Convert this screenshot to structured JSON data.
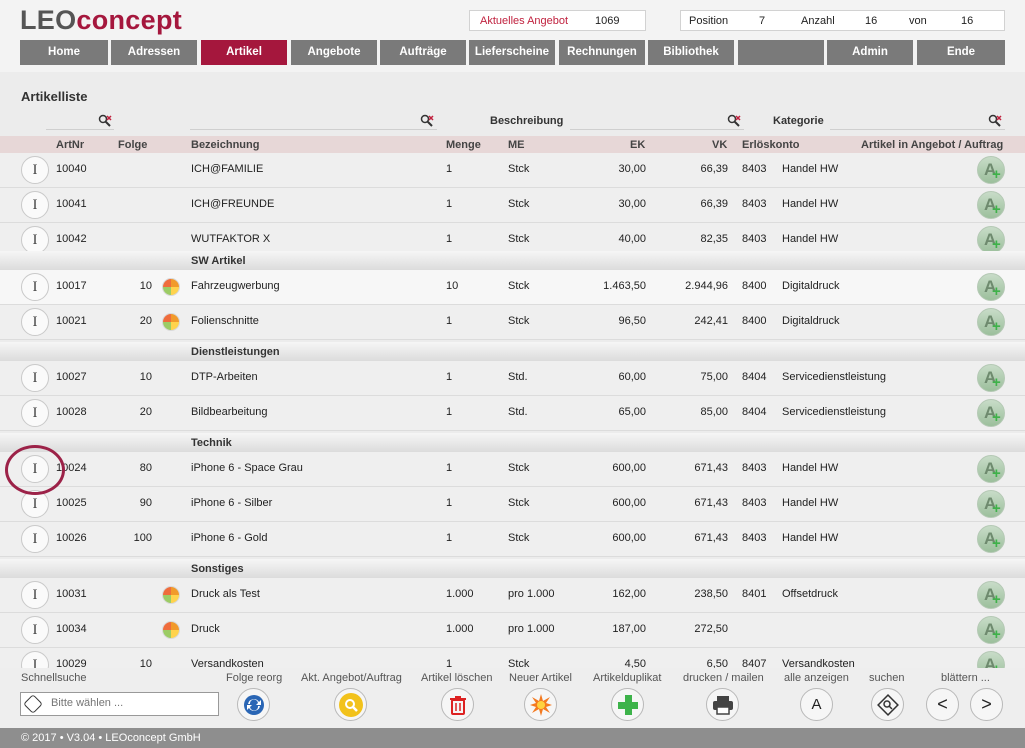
{
  "app": {
    "logo_part1": "LEO",
    "logo_part2": "concept",
    "offer_label": "Aktuelles Angebot",
    "offer_value": "1069",
    "position_label": "Position",
    "position_value": "7",
    "count_label": "Anzahl",
    "count_value": "16",
    "of_label": "von",
    "of_value": "16"
  },
  "nav": [
    "Home",
    "Adressen",
    "Artikel",
    "Angebote",
    "Aufträge",
    "Lieferscheine",
    "Rechnungen",
    "Bibliothek",
    "",
    "Admin",
    "Ende"
  ],
  "page_title": "Artikelliste",
  "filters": {
    "beschreibung_label": "Beschreibung",
    "kategorie_label": "Kategorie"
  },
  "columns": {
    "artnr": "ArtNr",
    "folge": "Folge",
    "bezeichnung": "Bezeichnung",
    "menge": "Menge",
    "me": "ME",
    "ek": "EK",
    "vk": "VK",
    "erloeskonto": "Erlöskonto",
    "artikel_in": "Artikel in Angebot / Auftrag"
  },
  "rows": [
    {
      "artnr": "10040",
      "folge": "",
      "pie": false,
      "bez": "ICH@FAMILIE",
      "menge": "1",
      "me": "Stck",
      "ek": "30,00",
      "vk": "66,39",
      "konto": "8403",
      "kat": "Handel HW"
    },
    {
      "artnr": "10041",
      "folge": "",
      "pie": false,
      "bez": "ICH@FREUNDE",
      "menge": "1",
      "me": "Stck",
      "ek": "30,00",
      "vk": "66,39",
      "konto": "8403",
      "kat": "Handel HW"
    },
    {
      "artnr": "10042",
      "folge": "",
      "pie": false,
      "bez": "WUTFAKTOR X",
      "menge": "1",
      "me": "Stck",
      "ek": "40,00",
      "vk": "82,35",
      "konto": "8403",
      "kat": "Handel HW"
    },
    {
      "artnr": "10017",
      "folge": "10",
      "pie": true,
      "bez": "Fahrzeugwerbung",
      "menge": "10",
      "me": "Stck",
      "ek": "1.463,50",
      "vk": "2.944,96",
      "konto": "8400",
      "kat": "Digitaldruck"
    },
    {
      "artnr": "10021",
      "folge": "20",
      "pie": true,
      "bez": "Folienschnitte",
      "menge": "1",
      "me": "Stck",
      "ek": "96,50",
      "vk": "242,41",
      "konto": "8400",
      "kat": "Digitaldruck"
    },
    {
      "artnr": "10027",
      "folge": "10",
      "pie": false,
      "bez": "DTP-Arbeiten",
      "menge": "1",
      "me": "Std.",
      "ek": "60,00",
      "vk": "75,00",
      "konto": "8404",
      "kat": "Servicedienstleistung"
    },
    {
      "artnr": "10028",
      "folge": "20",
      "pie": false,
      "bez": "Bildbearbeitung",
      "menge": "1",
      "me": "Std.",
      "ek": "65,00",
      "vk": "85,00",
      "konto": "8404",
      "kat": "Servicedienstleistung"
    },
    {
      "artnr": "10024",
      "folge": "80",
      "pie": false,
      "bez": "iPhone 6 - Space Grau",
      "menge": "1",
      "me": "Stck",
      "ek": "600,00",
      "vk": "671,43",
      "konto": "8403",
      "kat": "Handel HW"
    },
    {
      "artnr": "10025",
      "folge": "90",
      "pie": false,
      "bez": "iPhone 6 - Silber",
      "menge": "1",
      "me": "Stck",
      "ek": "600,00",
      "vk": "671,43",
      "konto": "8403",
      "kat": "Handel HW"
    },
    {
      "artnr": "10026",
      "folge": "100",
      "pie": false,
      "bez": "iPhone 6 - Gold",
      "menge": "1",
      "me": "Stck",
      "ek": "600,00",
      "vk": "671,43",
      "konto": "8403",
      "kat": "Handel HW"
    },
    {
      "artnr": "10031",
      "folge": "",
      "pie": true,
      "bez": "Druck als Test",
      "menge": "1.000",
      "me": "pro 1.000",
      "ek": "162,00",
      "vk": "238,50",
      "konto": "8401",
      "kat": "Offsetdruck"
    },
    {
      "artnr": "10034",
      "folge": "",
      "pie": true,
      "bez": "Druck",
      "menge": "1.000",
      "me": "pro 1.000",
      "ek": "187,00",
      "vk": "272,50",
      "konto": "",
      "kat": ""
    },
    {
      "artnr": "10029",
      "folge": "10",
      "pie": false,
      "bez": "Versandkosten",
      "menge": "1",
      "me": "Stck",
      "ek": "4,50",
      "vk": "6,50",
      "konto": "8407",
      "kat": "Versandkosten"
    }
  ],
  "groups": [
    "SW Artikel",
    "Dienstleistungen",
    "Technik",
    "Sonstiges"
  ],
  "toolbar": {
    "schnellsuche": "Schnellsuche",
    "search_placeholder": "Bitte wählen ...",
    "folge_reorg": "Folge reorg",
    "akt_angebot": "Akt. Angebot/Auftrag",
    "artikel_loeschen": "Artikel löschen",
    "neuer_artikel": "Neuer Artikel",
    "artikelduplikat": "Artikelduplikat",
    "drucken": "drucken / mailen",
    "alle_anzeigen": "alle anzeigen",
    "alle_icon": "A",
    "suchen": "suchen",
    "blaettern": "blättern ..."
  },
  "footer": "© 2017 • V3.04 • LEOconcept GmbH",
  "icons": {
    "row_info": "I",
    "prev": "<",
    "next": ">"
  }
}
